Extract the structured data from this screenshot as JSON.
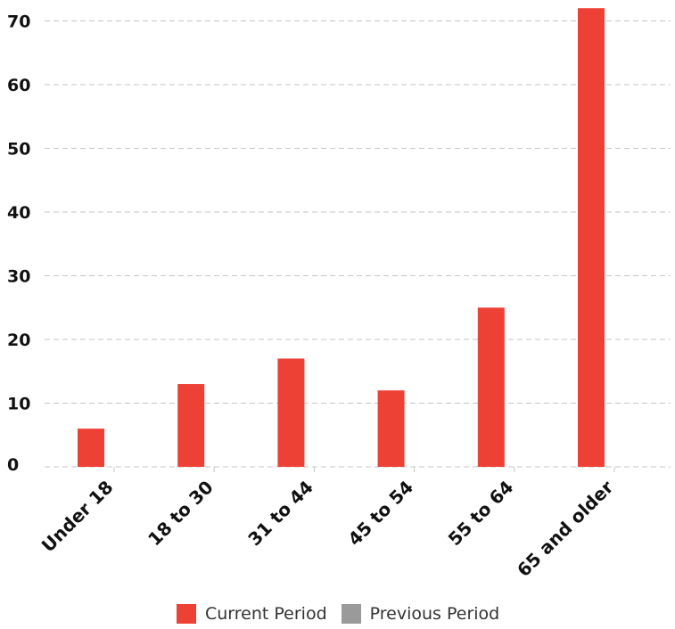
{
  "chart_data": {
    "type": "bar",
    "title": "",
    "xlabel": "",
    "ylabel": "",
    "categories": [
      "Under 18",
      "18 to 30",
      "31 to 44",
      "45 to 54",
      "55 to 64",
      "65 and older"
    ],
    "series": [
      {
        "name": "Current Period",
        "values": [
          6,
          13,
          17,
          12,
          25,
          72
        ],
        "color": "#ee4136"
      },
      {
        "name": "Previous Period",
        "values": [
          0,
          0,
          0,
          0,
          0,
          0
        ],
        "color": "#9a9a9a"
      }
    ],
    "ylim": [
      0,
      72
    ],
    "yticks": [
      0,
      10,
      20,
      30,
      40,
      50,
      60,
      70
    ],
    "grid": true,
    "legend": "bottom"
  }
}
